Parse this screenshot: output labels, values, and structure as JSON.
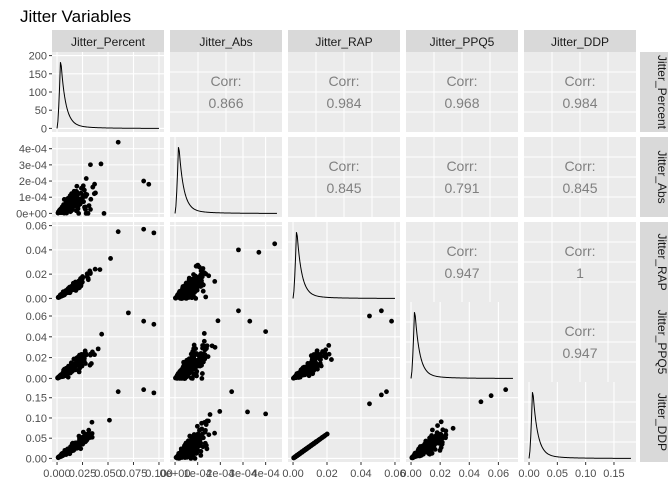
{
  "chart_data": {
    "type": "scatter",
    "title": "Jitter Variables",
    "variables": [
      "Jitter_Percent",
      "Jitter_Abs",
      "Jitter_RAP",
      "Jitter_PPQ5",
      "Jitter_DDP"
    ],
    "corr_label": "Corr:",
    "correlations": [
      {
        "row": 0,
        "col": 1,
        "value": "0.866"
      },
      {
        "row": 0,
        "col": 2,
        "value": "0.984"
      },
      {
        "row": 0,
        "col": 3,
        "value": "0.968"
      },
      {
        "row": 0,
        "col": 4,
        "value": "0.984"
      },
      {
        "row": 1,
        "col": 2,
        "value": "0.845"
      },
      {
        "row": 1,
        "col": 3,
        "value": "0.791"
      },
      {
        "row": 1,
        "col": 4,
        "value": "0.845"
      },
      {
        "row": 2,
        "col": 3,
        "value": "0.947"
      },
      {
        "row": 2,
        "col": 4,
        "value": "1"
      },
      {
        "row": 3,
        "col": 4,
        "value": "0.947"
      }
    ],
    "x_axes": [
      {
        "range": [
          0,
          0.1
        ],
        "ticks": [
          0,
          0.025,
          0.05,
          0.075,
          0.1
        ],
        "labels": [
          "0.000",
          "0.025",
          "0.050",
          "0.075",
          "0.100"
        ]
      },
      {
        "range": [
          0,
          0.00045
        ],
        "ticks": [
          0,
          0.0001,
          0.0002,
          0.0003,
          0.0004
        ],
        "labels": [
          "0e+00",
          "1e-04",
          "2e-04",
          "3e-04",
          "4e-04"
        ]
      },
      {
        "range": [
          0,
          0.06
        ],
        "ticks": [
          0,
          0.02,
          0.04,
          0.06
        ],
        "labels": [
          "0.00",
          "0.02",
          "0.04",
          "0.06"
        ]
      },
      {
        "range": [
          0,
          0.07
        ],
        "ticks": [
          0,
          0.02,
          0.04,
          0.06
        ],
        "labels": [
          "0.00",
          "0.02",
          "0.04",
          "0.06"
        ]
      },
      {
        "range": [
          0,
          0.18
        ],
        "ticks": [
          0,
          0.05,
          0.1,
          0.15
        ],
        "labels": [
          "0.00",
          "0.05",
          "0.10",
          "0.15"
        ]
      }
    ],
    "y_axes": [
      {
        "range": [
          0,
          200
        ],
        "ticks": [
          0,
          50,
          100,
          150,
          200
        ],
        "labels": [
          "0",
          "50",
          "100",
          "150",
          "200"
        ]
      },
      {
        "range": [
          0,
          0.00045
        ],
        "ticks": [
          0,
          0.0001,
          0.0002,
          0.0003,
          0.0004
        ],
        "labels": [
          "0e+00",
          "1e-04",
          "2e-04",
          "3e-04",
          "4e-04"
        ]
      },
      {
        "range": [
          0,
          0.06
        ],
        "ticks": [
          0,
          0.02,
          0.04,
          0.06
        ],
        "labels": [
          "0.00",
          "0.02",
          "0.04",
          "0.06"
        ]
      },
      {
        "range": [
          0,
          0.07
        ],
        "ticks": [
          0,
          0.02,
          0.04,
          0.06
        ],
        "labels": [
          "0.00",
          "0.02",
          "0.04",
          "0.06"
        ]
      },
      {
        "range": [
          0,
          0.18
        ],
        "ticks": [
          0,
          0.05,
          0.1,
          0.15
        ],
        "labels": [
          "0.00",
          "0.05",
          "0.10",
          "0.15"
        ]
      }
    ],
    "density": {
      "percent_peak_y": 190,
      "shape": "right-skewed, sharp peak near zero"
    },
    "scatter_extremes": {
      "percent_vs_abs": [
        [
          0.06,
          0.00044
        ],
        [
          0.085,
          0.0002
        ],
        [
          0.09,
          0.00018
        ]
      ],
      "percent_vs_rap": [
        [
          0.06,
          0.055
        ],
        [
          0.085,
          0.057
        ],
        [
          0.095,
          0.054
        ]
      ],
      "percent_vs_ppq5": [
        [
          0.07,
          0.063
        ],
        [
          0.085,
          0.055
        ],
        [
          0.095,
          0.052
        ]
      ],
      "percent_vs_ddp": [
        [
          0.06,
          0.165
        ],
        [
          0.085,
          0.17
        ],
        [
          0.095,
          0.162
        ]
      ],
      "abs_vs_rap": [
        [
          0.00044,
          0.045
        ],
        [
          0.00028,
          0.04
        ],
        [
          0.00037,
          0.038
        ]
      ],
      "abs_vs_ppq5": [
        [
          0.00033,
          0.055
        ],
        [
          0.00028,
          0.065
        ],
        [
          0.0004,
          0.045
        ]
      ],
      "abs_vs_ddp": [
        [
          0.00025,
          0.165
        ],
        [
          0.00032,
          0.115
        ],
        [
          0.0004,
          0.11
        ]
      ],
      "rap_vs_ppq5": [
        [
          0.052,
          0.065
        ],
        [
          0.058,
          0.055
        ],
        [
          0.045,
          0.06
        ]
      ],
      "rap_vs_ddp": [
        [
          0.055,
          0.165
        ],
        [
          0.052,
          0.157
        ],
        [
          0.045,
          0.135
        ]
      ],
      "ppq5_vs_ddp": [
        [
          0.065,
          0.17
        ],
        [
          0.055,
          0.155
        ],
        [
          0.048,
          0.14
        ]
      ]
    }
  }
}
